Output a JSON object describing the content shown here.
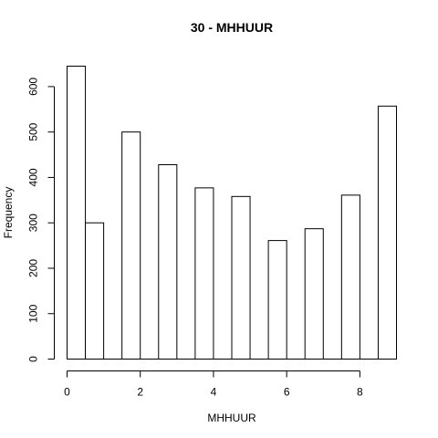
{
  "chart_data": {
    "type": "bar",
    "title": "30 - MHHUUR",
    "xlabel": "MHHUUR",
    "ylabel": "Frequency",
    "bins": [
      {
        "x0": 0.0,
        "x1": 0.5,
        "value": 645
      },
      {
        "x0": 0.5,
        "x1": 1.0,
        "value": 300
      },
      {
        "x0": 1.0,
        "x1": 1.5,
        "value": 0
      },
      {
        "x0": 1.5,
        "x1": 2.0,
        "value": 500
      },
      {
        "x0": 2.0,
        "x1": 2.5,
        "value": 0
      },
      {
        "x0": 2.5,
        "x1": 3.0,
        "value": 428
      },
      {
        "x0": 3.0,
        "x1": 3.5,
        "value": 0
      },
      {
        "x0": 3.5,
        "x1": 4.0,
        "value": 377
      },
      {
        "x0": 4.0,
        "x1": 4.5,
        "value": 0
      },
      {
        "x0": 4.5,
        "x1": 5.0,
        "value": 358
      },
      {
        "x0": 5.0,
        "x1": 5.5,
        "value": 0
      },
      {
        "x0": 5.5,
        "x1": 6.0,
        "value": 261
      },
      {
        "x0": 6.0,
        "x1": 6.5,
        "value": 0
      },
      {
        "x0": 6.5,
        "x1": 7.0,
        "value": 287
      },
      {
        "x0": 7.0,
        "x1": 7.5,
        "value": 0
      },
      {
        "x0": 7.5,
        "x1": 8.0,
        "value": 361
      },
      {
        "x0": 8.0,
        "x1": 8.5,
        "value": 0
      },
      {
        "x0": 8.5,
        "x1": 9.0,
        "value": 557
      }
    ],
    "xlim": [
      0,
      9
    ],
    "ylim": [
      0,
      645
    ],
    "x_ticks": [
      0,
      2,
      4,
      6,
      8
    ],
    "y_ticks": [
      0,
      100,
      200,
      300,
      400,
      500,
      600
    ],
    "grid": false,
    "legend": "none",
    "colors": {
      "bar_fill": "#ffffff",
      "bar_stroke": "#000000",
      "axis": "#000000",
      "text": "#000000"
    }
  }
}
